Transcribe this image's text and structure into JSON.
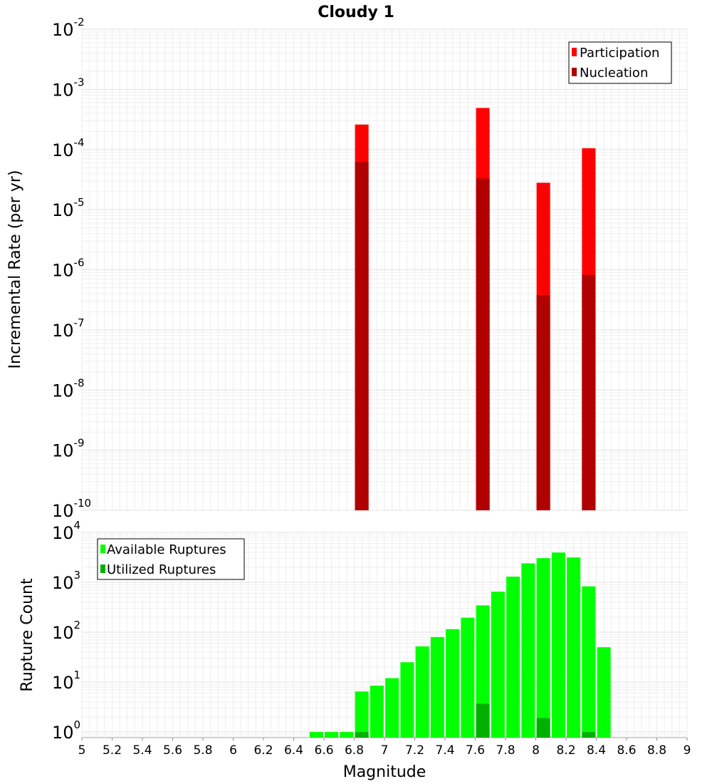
{
  "chart_data": [
    {
      "type": "bar",
      "title": "Cloudy 1",
      "xlabel": "",
      "ylabel": "Incremental Rate (per yr)",
      "yscale": "log",
      "ylim": [
        1e-10,
        0.01
      ],
      "y_tick_bases": [
        "10",
        "10",
        "10",
        "10",
        "10",
        "10",
        "10",
        "10",
        "10"
      ],
      "y_tick_exponents": [
        "-10",
        "-9",
        "-8",
        "-7",
        "-6",
        "-5",
        "-4",
        "-3",
        "-2"
      ],
      "xlim": [
        5,
        9
      ],
      "grid": true,
      "legend_position": "top-right",
      "colors": {
        "Participation": "#ff0000",
        "Nucleation": "#b00000"
      },
      "series": [
        {
          "name": "Participation",
          "x": [
            6.85,
            7.65,
            8.05,
            8.35
          ],
          "values": [
            0.00026,
            0.00049,
            2.8e-05,
            0.000105
          ]
        },
        {
          "name": "Nucleation",
          "x": [
            6.85,
            7.65,
            8.05,
            8.35
          ],
          "values": [
            6.2e-05,
            3.3e-05,
            3.8e-07,
            8.2e-07
          ]
        }
      ]
    },
    {
      "type": "bar",
      "title": "",
      "xlabel": "Magnitude",
      "ylabel": "Rupture Count",
      "yscale": "log",
      "ylim": [
        0.77,
        10000
      ],
      "y_tick_bases": [
        "10",
        "10",
        "10",
        "10",
        "10"
      ],
      "y_tick_exponents": [
        "0",
        "1",
        "2",
        "3",
        "4"
      ],
      "xlim": [
        5,
        9
      ],
      "x_tick_labels": [
        "5",
        "5.2",
        "5.4",
        "5.6",
        "5.8",
        "6",
        "6.2",
        "6.4",
        "6.6",
        "6.8",
        "7",
        "7.2",
        "7.4",
        "7.6",
        "7.8",
        "8",
        "8.2",
        "8.4",
        "8.6",
        "8.8",
        "9"
      ],
      "grid": true,
      "legend_position": "top-left",
      "colors": {
        "Available Ruptures": "#00ff00",
        "Utilized Ruptures": "#00b000"
      },
      "series": [
        {
          "name": "Available Ruptures",
          "x": [
            6.55,
            6.65,
            6.75,
            6.85,
            6.95,
            7.05,
            7.15,
            7.25,
            7.35,
            7.45,
            7.55,
            7.65,
            7.75,
            7.85,
            7.95,
            8.05,
            8.15,
            8.25,
            8.35,
            8.45
          ],
          "values": [
            1,
            1,
            1,
            6.5,
            8.5,
            12,
            25,
            52,
            80,
            115,
            195,
            345,
            650,
            1300,
            2400,
            3050,
            3950,
            3150,
            830,
            50
          ]
        },
        {
          "name": "Utilized Ruptures",
          "x": [
            6.85,
            7.65,
            8.05,
            8.35
          ],
          "values": [
            1,
            3.7,
            1.9,
            1
          ]
        }
      ]
    }
  ]
}
